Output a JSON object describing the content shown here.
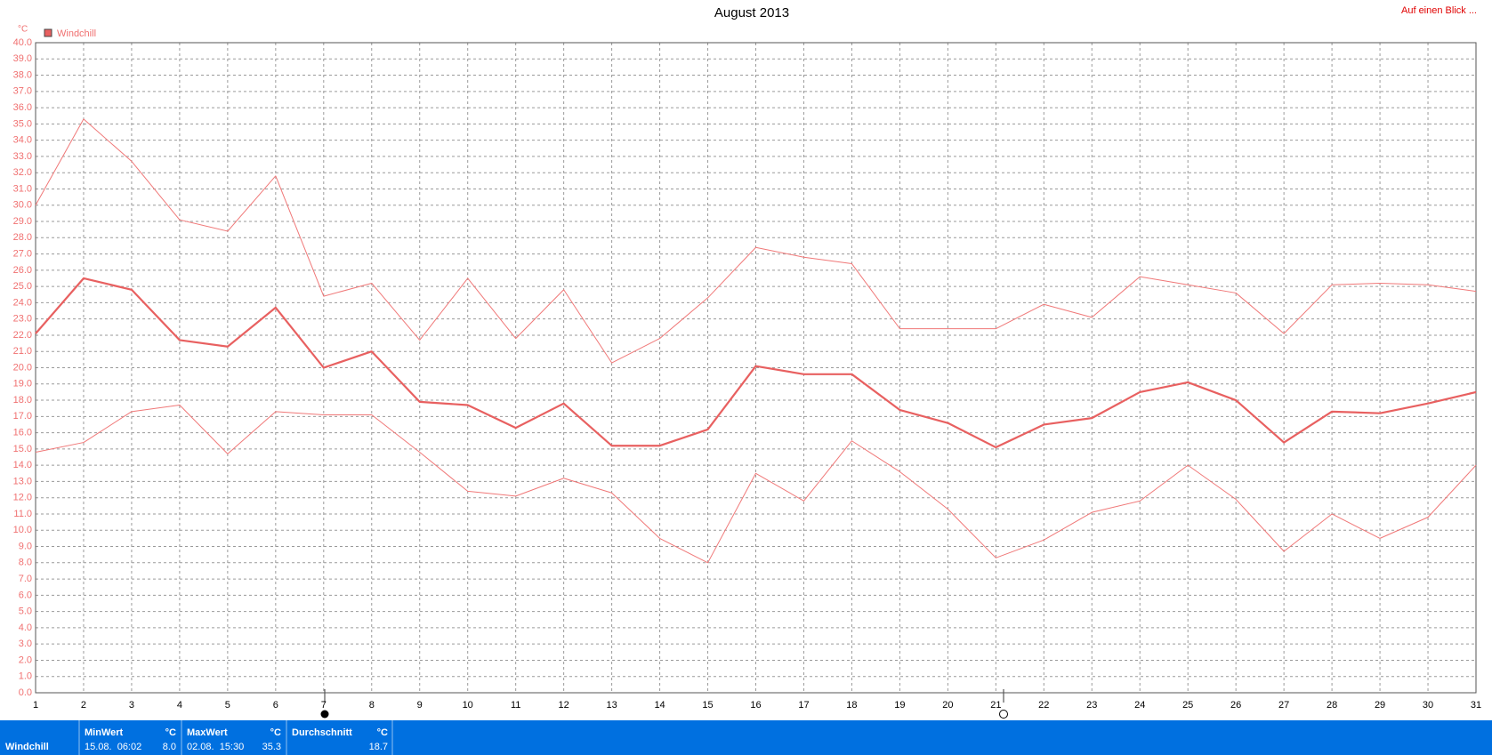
{
  "chart_data": {
    "type": "line",
    "title": "August 2013",
    "y_unit": "°C",
    "link": "Auf einen Blick ...",
    "x": [
      1,
      2,
      3,
      4,
      5,
      6,
      7,
      8,
      9,
      10,
      11,
      12,
      13,
      14,
      15,
      16,
      17,
      18,
      19,
      20,
      21,
      22,
      23,
      24,
      25,
      26,
      27,
      28,
      29,
      30,
      31
    ],
    "xlim": [
      1,
      31
    ],
    "xticks": [
      1,
      2,
      3,
      4,
      5,
      6,
      7,
      8,
      9,
      10,
      11,
      12,
      13,
      14,
      15,
      16,
      17,
      18,
      19,
      20,
      21,
      22,
      23,
      24,
      25,
      26,
      27,
      28,
      29,
      30,
      31
    ],
    "ylim": [
      0,
      40
    ],
    "yticks": [
      {
        "value": 0,
        "label": "0.0"
      },
      {
        "value": 1,
        "label": "1.0"
      },
      {
        "value": 2,
        "label": "2.0"
      },
      {
        "value": 3,
        "label": "3.0"
      },
      {
        "value": 4,
        "label": "4.0"
      },
      {
        "value": 5,
        "label": "5.0"
      },
      {
        "value": 6,
        "label": "6.0"
      },
      {
        "value": 7,
        "label": "7.0"
      },
      {
        "value": 8,
        "label": "8.0"
      },
      {
        "value": 9,
        "label": "9.0"
      },
      {
        "value": 10,
        "label": "10.0"
      },
      {
        "value": 11,
        "label": "11.0"
      },
      {
        "value": 12,
        "label": "12.0"
      },
      {
        "value": 13,
        "label": "13.0"
      },
      {
        "value": 14,
        "label": "14.0"
      },
      {
        "value": 15,
        "label": "15.0"
      },
      {
        "value": 16,
        "label": "16.0"
      },
      {
        "value": 17,
        "label": "17.0"
      },
      {
        "value": 18,
        "label": "18.0"
      },
      {
        "value": 19,
        "label": "19.0"
      },
      {
        "value": 20,
        "label": "20.0"
      },
      {
        "value": 21,
        "label": "21.0"
      },
      {
        "value": 22,
        "label": "22.0"
      },
      {
        "value": 23,
        "label": "23.0"
      },
      {
        "value": 24,
        "label": "24.0"
      },
      {
        "value": 25,
        "label": "25.0"
      },
      {
        "value": 26,
        "label": "26.0"
      },
      {
        "value": 27,
        "label": "27.0"
      },
      {
        "value": 28,
        "label": "28.0"
      },
      {
        "value": 29,
        "label": "29.0"
      },
      {
        "value": 30,
        "label": "30.0"
      },
      {
        "value": 31,
        "label": "31.0"
      },
      {
        "value": 32,
        "label": "32.0"
      },
      {
        "value": 33,
        "label": "33.0"
      },
      {
        "value": 34,
        "label": "34.0"
      },
      {
        "value": 35,
        "label": "35.0"
      },
      {
        "value": 36,
        "label": "36.0"
      },
      {
        "value": 37,
        "label": "37.0"
      },
      {
        "value": 38,
        "label": "38.0"
      },
      {
        "value": 39,
        "label": "39.0"
      },
      {
        "value": 40,
        "label": "40.0"
      }
    ],
    "grid": true,
    "series": [
      {
        "color": "#f07878",
        "width": 1,
        "values": [
          30.0,
          35.3,
          32.7,
          29.1,
          28.4,
          31.8,
          24.4,
          25.2,
          21.7,
          25.5,
          21.8,
          24.8,
          20.3,
          21.8,
          24.3,
          27.4,
          26.8,
          26.4,
          22.4,
          22.4,
          22.4,
          23.9,
          23.1,
          25.6,
          25.1,
          24.6,
          22.1,
          25.1,
          25.2,
          25.1,
          24.7
        ]
      },
      {
        "name": "Windchill",
        "color": "#e86060",
        "width": 2.2,
        "values": [
          22.1,
          25.5,
          24.8,
          21.7,
          21.3,
          23.7,
          20.0,
          21.0,
          17.9,
          17.7,
          16.3,
          17.8,
          15.2,
          15.2,
          16.2,
          20.1,
          19.6,
          19.6,
          17.4,
          16.6,
          15.1,
          16.5,
          16.9,
          18.5,
          19.1,
          18.0,
          15.4,
          17.3,
          17.2,
          17.8,
          18.5
        ]
      },
      {
        "color": "#f07878",
        "width": 1,
        "values": [
          14.8,
          15.4,
          17.3,
          17.7,
          14.7,
          17.3,
          17.1,
          17.1,
          14.8,
          12.4,
          12.1,
          13.2,
          12.3,
          9.5,
          8.0,
          13.5,
          11.8,
          15.5,
          13.6,
          11.3,
          8.3,
          9.4,
          11.1,
          11.8,
          14.0,
          11.9,
          8.7,
          11.0,
          9.5,
          10.8,
          14.0
        ]
      }
    ]
  },
  "summary": {
    "label": "Windchill",
    "columns": [
      {
        "header": "MinWert",
        "unit": "°C",
        "time": "15.08.  06:02",
        "value": "8.0"
      },
      {
        "header": "MaxWert",
        "unit": "°C",
        "time": "02.08.  15:30",
        "value": "35.3"
      },
      {
        "header": "Durchschnitt",
        "unit": "°C",
        "time": "",
        "value": "18.7"
      }
    ]
  }
}
